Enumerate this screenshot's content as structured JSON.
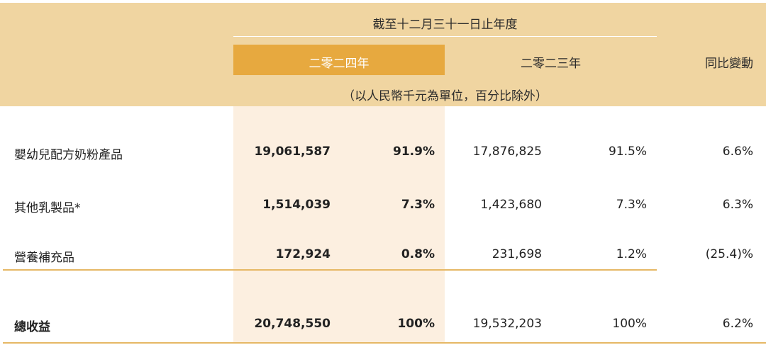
{
  "header": {
    "period": "截至十二月三十一日止年度",
    "year_2024": "二零二四年",
    "year_2023": "二零二三年",
    "yoy_change": "同比變動",
    "unit_note": "（以人民幣千元為單位，百分比除外）"
  },
  "rows": [
    {
      "label": "嬰幼兒配方奶粉產品",
      "v2024": "19,061,587",
      "p2024": "91.9%",
      "v2023": "17,876,825",
      "p2023": "91.5%",
      "yoy": "6.6%"
    },
    {
      "label": "其他乳製品*",
      "v2024": "1,514,039",
      "p2024": "7.3%",
      "v2023": "1,423,680",
      "p2023": "7.3%",
      "yoy": "6.3%"
    },
    {
      "label": "營養補充品",
      "v2024": "172,924",
      "p2024": "0.8%",
      "v2023": "231,698",
      "p2023": "1.2%",
      "yoy": "(25.4)%"
    }
  ],
  "total": {
    "label": "總收益",
    "v2024": "20,748,550",
    "p2024": "100%",
    "v2023": "19,532,203",
    "p2023": "100%",
    "yoy": "6.2%"
  },
  "colors": {
    "header_bg": "#f0d5a1",
    "highlight_tab": "#e7a93f",
    "highlight_col": "#fcefe0",
    "rule": "#e6b865"
  }
}
